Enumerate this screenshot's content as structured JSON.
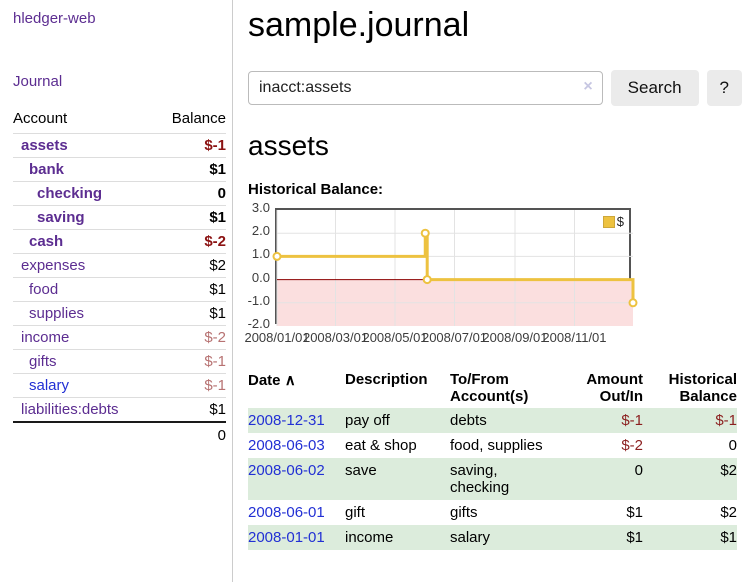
{
  "colors": {
    "purple_link": "#5c2d91",
    "blue_link": "#2230d4",
    "negative_strong": "#8b1212",
    "negative_soft": "#b77272",
    "table_negative": "#8b1f1f",
    "row_stripe_green": "#dcecdc",
    "chart_line_gold": "#edc240"
  },
  "sidebar": {
    "brand": "hledger-web",
    "nav_journal": "Journal",
    "accounts_table": {
      "col_account": "Account",
      "col_balance": "Balance",
      "rows": [
        {
          "name": "assets",
          "balance": "$-1",
          "indent": 1,
          "bold": true,
          "val_class": "neg-strong",
          "link": "purple"
        },
        {
          "name": "bank",
          "balance": "$1",
          "indent": 2,
          "bold": true,
          "val_class": "",
          "link": "purple"
        },
        {
          "name": "checking",
          "balance": "0",
          "indent": 3,
          "bold": true,
          "val_class": "",
          "link": "purple"
        },
        {
          "name": "saving",
          "balance": "$1",
          "indent": 3,
          "bold": true,
          "val_class": "",
          "link": "purple"
        },
        {
          "name": "cash",
          "balance": "$-2",
          "indent": 2,
          "bold": true,
          "val_class": "neg-strong",
          "link": "purple"
        },
        {
          "name": "expenses",
          "balance": "$2",
          "indent": 1,
          "bold": false,
          "val_class": "",
          "link": "purple"
        },
        {
          "name": "food",
          "balance": "$1",
          "indent": 2,
          "bold": false,
          "val_class": "",
          "link": "purple"
        },
        {
          "name": "supplies",
          "balance": "$1",
          "indent": 2,
          "bold": false,
          "val_class": "",
          "link": "purple"
        },
        {
          "name": "income",
          "balance": "$-2",
          "indent": 1,
          "bold": false,
          "val_class": "neg-soft",
          "link": "purple"
        },
        {
          "name": "gifts",
          "balance": "$-1",
          "indent": 2,
          "bold": false,
          "val_class": "neg-soft",
          "link": "purple"
        },
        {
          "name": "salary",
          "balance": "$-1",
          "indent": 2,
          "bold": false,
          "val_class": "neg-soft",
          "link": "blue"
        },
        {
          "name": "liabilities:debts",
          "balance": "$1",
          "indent": 1,
          "bold": false,
          "val_class": "",
          "link": "purple"
        }
      ],
      "total": "0"
    }
  },
  "main": {
    "title": "sample.journal",
    "search": {
      "value": "inacct:assets",
      "clear_icon": "×",
      "search_label": "Search",
      "help_label": "?"
    },
    "account_heading": "assets",
    "chart_heading": "Historical Balance:"
  },
  "chart_data": {
    "type": "line",
    "steps": true,
    "title": "Historical Balance",
    "series": [
      {
        "name": "$",
        "color": "#edc240",
        "points": [
          [
            "2008-01-01",
            1
          ],
          [
            "2008-06-01",
            2
          ],
          [
            "2008-06-03",
            0
          ],
          [
            "2008-12-31",
            -1
          ]
        ]
      }
    ],
    "x_range": [
      "2008-01-01",
      "2008-12-31"
    ],
    "x_ticks": [
      "2008/01/01",
      "2008/03/01",
      "2008/05/01",
      "2008/07/01",
      "2008/09/01",
      "2008/11/01"
    ],
    "y_ticks": [
      "3.0",
      "2.0",
      "1.0",
      "0.0",
      "-1.0",
      "-2.0"
    ],
    "ylim": [
      -2,
      3
    ],
    "legend": "$",
    "legend_position": "top-right",
    "grid": true,
    "negative_fill": "#fbdfdf",
    "zero_line_color": "#8b0000"
  },
  "table": {
    "headers": {
      "date": "Date",
      "sort_icon": "∧",
      "description": "Description",
      "accounts": "To/From\nAccount(s)",
      "amount": "Amount\nOut/In",
      "balance": "Historical\nBalance"
    },
    "rows": [
      {
        "date": "2008-12-31",
        "description": "pay off",
        "accounts": "debts",
        "amount": "$-1",
        "amount_neg": true,
        "balance": "$-1",
        "balance_neg": true
      },
      {
        "date": "2008-06-03",
        "description": "eat & shop",
        "accounts": "food, supplies",
        "amount": "$-2",
        "amount_neg": true,
        "balance": "0",
        "balance_neg": false
      },
      {
        "date": "2008-06-02",
        "description": "save",
        "accounts": "saving,\nchecking",
        "amount": "0",
        "amount_neg": false,
        "balance": "$2",
        "balance_neg": false
      },
      {
        "date": "2008-06-01",
        "description": "gift",
        "accounts": "gifts",
        "amount": "$1",
        "amount_neg": false,
        "balance": "$2",
        "balance_neg": false
      },
      {
        "date": "2008-01-01",
        "description": "income",
        "accounts": "salary",
        "amount": "$1",
        "amount_neg": false,
        "balance": "$1",
        "balance_neg": false
      }
    ]
  }
}
